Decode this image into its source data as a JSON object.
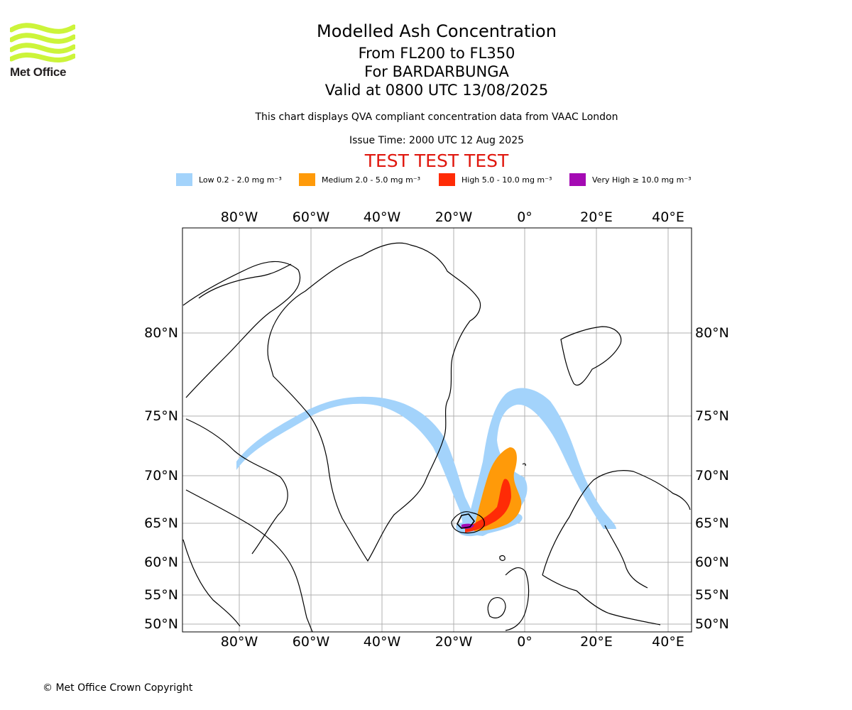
{
  "logo": {
    "text": "Met Office",
    "color": "#ccf43a"
  },
  "title": {
    "line1": "Modelled Ash Concentration",
    "line2": "From FL200 to FL350",
    "line3": "For BARDARBUNGA",
    "line4": "Valid at 0800 UTC 13/08/2025"
  },
  "subtitle": "This chart displays QVA compliant concentration data from VAAC London",
  "issue_time": "Issue Time: 2000 UTC 12 Aug 2025",
  "test_banner": "TEST TEST TEST",
  "legend": [
    {
      "label": "Low 0.2 - 2.0 mg m⁻³",
      "color": "#a3d3fb"
    },
    {
      "label": "Medium 2.0 - 5.0 mg m⁻³",
      "color": "#ff9a09"
    },
    {
      "label": "High 5.0 - 10.0 mg m⁻³",
      "color": "#ff2b06"
    },
    {
      "label": "Very High ≥ 10.0 mg m⁻³",
      "color": "#a40ab3"
    }
  ],
  "map": {
    "lon_ticks": [
      "80°W",
      "60°W",
      "40°W",
      "20°W",
      "0°",
      "20°E",
      "40°E"
    ],
    "lat_ticks": [
      "80°N",
      "75°N",
      "70°N",
      "65°N",
      "60°N",
      "55°N",
      "50°N"
    ],
    "volcano": "BARDARBUNGA"
  },
  "copyright": "© Met Office Crown Copyright"
}
